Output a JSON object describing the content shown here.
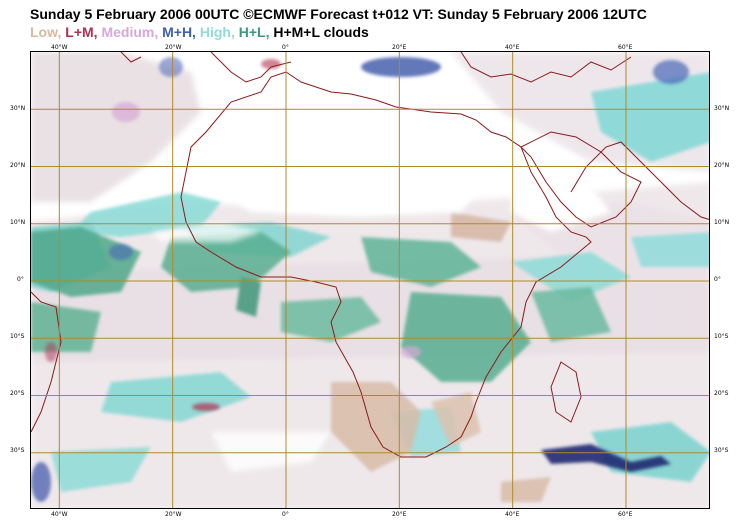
{
  "title": "Sunday 5 February 2006 00UTC ©ECMWF Forecast t+012 VT: Sunday 5 February 2006 12UTC",
  "legend": [
    {
      "label": "Low,",
      "color": "#d8b8a0"
    },
    {
      "label": "L+M,",
      "color": "#b03050"
    },
    {
      "label": "Medium,",
      "color": "#d8a8d8"
    },
    {
      "label": "M+H,",
      "color": "#4060b0"
    },
    {
      "label": "High,",
      "color": "#90dcdc"
    },
    {
      "label": "H+L,",
      "color": "#3c9a7a"
    },
    {
      "label": "H+M+L clouds",
      "color": "#000000"
    }
  ],
  "map": {
    "lon_range": [
      -45,
      75
    ],
    "lat_range": [
      -40,
      40
    ],
    "lon_labels": [
      "40°W",
      "20°W",
      "0°",
      "20°E",
      "40°E",
      "60°E"
    ],
    "lat_labels": [
      "30°N",
      "20°N",
      "10°N",
      "0°",
      "10°S",
      "20°S",
      "30°S"
    ],
    "colors": {
      "grid": "#b08a2a",
      "coast": "#8b1a1a",
      "background": "#ffffff"
    }
  }
}
